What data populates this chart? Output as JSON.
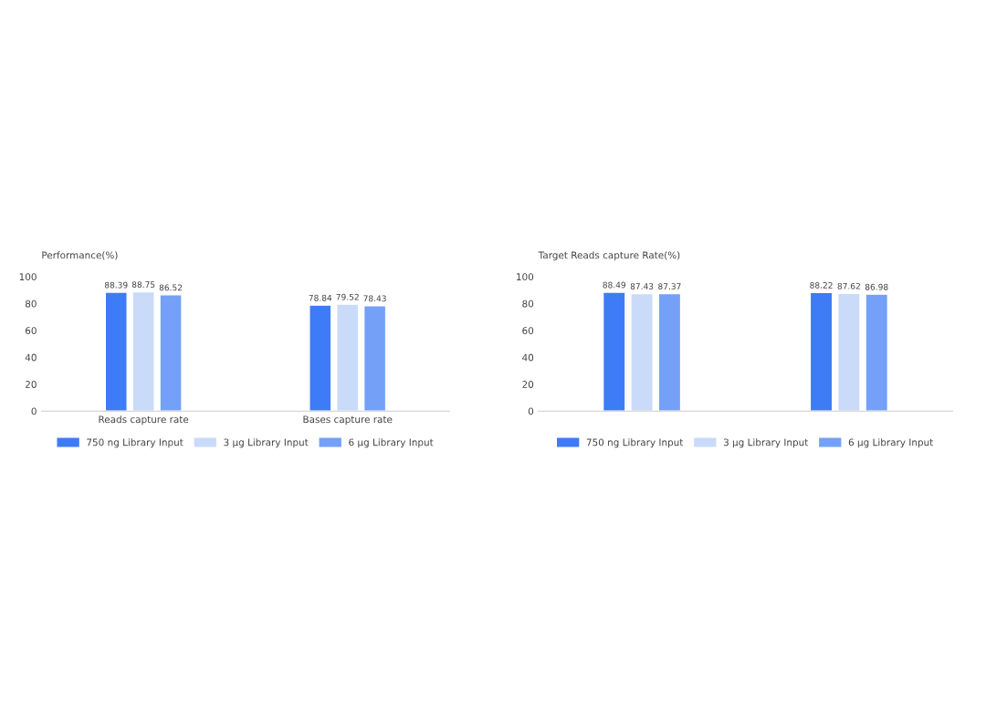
{
  "chart_data": [
    {
      "type": "bar",
      "ylabel": "Performance(%)",
      "categories": [
        "Reads capture rate",
        "Bases capture rate"
      ],
      "series": [
        {
          "name": "750 ng Library Input",
          "color": "#3e7bf6",
          "values": [
            88.39,
            78.84
          ]
        },
        {
          "name": "3 μg Library Input",
          "color": "#c9dbf8",
          "values": [
            88.75,
            79.52
          ]
        },
        {
          "name": "6 μg Library Input",
          "color": "#74a0f8",
          "values": [
            86.52,
            78.43
          ]
        }
      ],
      "ylim": [
        0,
        100
      ],
      "yticks": [
        0,
        20,
        40,
        60,
        80,
        100
      ],
      "data_labels": true,
      "legend": "bottom",
      "grid": false
    },
    {
      "type": "bar",
      "ylabel": "Target Reads capture Rate(%)",
      "categories": [
        null,
        null
      ],
      "series": [
        {
          "name": "750 ng Library Input",
          "color": "#3e7bf6",
          "values": [
            88.49,
            88.22
          ]
        },
        {
          "name": "3 μg Library Input",
          "color": "#c9dbf8",
          "values": [
            87.43,
            87.62
          ]
        },
        {
          "name": "6 μg Library Input",
          "color": "#74a0f8",
          "values": [
            87.37,
            86.98
          ]
        }
      ],
      "ylim": [
        0,
        100
      ],
      "yticks": [
        0,
        20,
        40,
        60,
        80,
        100
      ],
      "data_labels": true,
      "legend": "bottom",
      "grid": false
    }
  ]
}
